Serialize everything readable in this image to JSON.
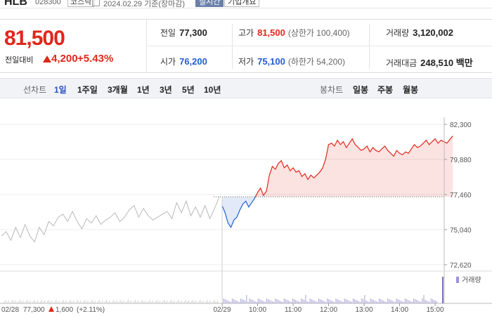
{
  "header": {
    "name": "HLB",
    "code": "028300",
    "market": "코스닥",
    "date": "2024.02.29  기준(장마감)",
    "realtime": "실시간",
    "corp_info": "기업개요"
  },
  "quote": {
    "price": "81,500",
    "change_label": "전일대비",
    "change": "4,200",
    "change_pct": "+5.43%",
    "prev_label": "전일",
    "prev": "77,300",
    "high_label": "고가",
    "high": "81,500",
    "upper_limit": "(상한가 100,400)",
    "volume_label": "거래량",
    "volume": "3,120,002",
    "open_label": "시가",
    "open": "76,200",
    "low_label": "저가",
    "low": "75,100",
    "lower_limit": "(하한가 54,200)",
    "amount_label": "거래대금",
    "amount": "248,510 백만"
  },
  "toolbar": {
    "line_label": "선차트",
    "periods": [
      "1일",
      "1주일",
      "3개월",
      "1년",
      "3년",
      "5년",
      "10년"
    ],
    "candle_label": "봉차트",
    "candles": [
      "일봉",
      "주봉",
      "월봉"
    ]
  },
  "colors": {
    "up": "#e0271b",
    "down": "#1f5fd1",
    "prev": "#b9b9b9",
    "toolbar_bg": "#f2f3f7"
  },
  "chart_data": {
    "type": "line",
    "y_ticks": [
      "82,300",
      "79,880",
      "77,460",
      "75,040",
      "72,620"
    ],
    "ylim": [
      72620,
      82300
    ],
    "baseline": 77300,
    "volume_label": "거래량",
    "x_ticks": [
      "02/29",
      "10:00",
      "11:00",
      "12:00",
      "13:00",
      "14:00",
      "15:00"
    ],
    "prev_day": {
      "label": "02/28",
      "close_label": "77,300",
      "change": "1,600",
      "change_pct": "(+2.11%)",
      "values": [
        74600,
        74900,
        74300,
        75200,
        74500,
        75400,
        74600,
        74200,
        75200,
        74700,
        75600,
        75300,
        75900,
        76100,
        75600,
        76300,
        75600,
        75100,
        75800,
        75500,
        76000,
        75400,
        75700,
        75900,
        76200,
        75600,
        75900,
        76400,
        76700,
        75900,
        76500,
        76000,
        75700,
        75900,
        76100,
        76300,
        75800,
        76900,
        76200,
        77000,
        76000,
        76600,
        75900,
        76700,
        75800,
        76500,
        77300
      ]
    },
    "today": {
      "times": [
        "09:00",
        "09:05",
        "09:10",
        "09:15",
        "09:20",
        "09:25",
        "09:30",
        "09:35",
        "09:40",
        "09:45",
        "09:50",
        "09:55",
        "10:00",
        "10:05",
        "10:10",
        "10:15",
        "10:20",
        "10:25",
        "10:30",
        "10:35",
        "10:40",
        "10:45",
        "10:50",
        "10:55",
        "11:00",
        "11:05",
        "11:10",
        "11:15",
        "11:20",
        "11:25",
        "11:30",
        "11:35",
        "11:40",
        "11:45",
        "11:50",
        "11:55",
        "12:00",
        "12:05",
        "12:10",
        "12:15",
        "12:20",
        "12:25",
        "12:30",
        "12:35",
        "12:40",
        "12:45",
        "12:50",
        "12:55",
        "13:00",
        "13:05",
        "13:10",
        "13:15",
        "13:20",
        "13:25",
        "13:30",
        "13:35",
        "13:40",
        "13:45",
        "13:50",
        "13:55",
        "14:00",
        "14:05",
        "14:10",
        "14:15",
        "14:20",
        "14:25",
        "14:30",
        "14:35",
        "14:40",
        "14:45",
        "14:50",
        "14:55",
        "15:00",
        "15:05",
        "15:10",
        "15:15",
        "15:20",
        "15:30"
      ],
      "values": [
        76700,
        76200,
        75500,
        75200,
        75700,
        75900,
        76400,
        76800,
        77000,
        76600,
        76900,
        77200,
        77600,
        77900,
        77400,
        77700,
        78800,
        79400,
        79200,
        79600,
        79800,
        79300,
        79500,
        79100,
        79300,
        79000,
        79100,
        78700,
        78900,
        78500,
        78800,
        78600,
        78800,
        79000,
        79300,
        79900,
        80900,
        81000,
        80800,
        81200,
        80900,
        81100,
        80700,
        81000,
        81300,
        80900,
        80700,
        80500,
        80600,
        80800,
        80400,
        80700,
        80500,
        80400,
        80600,
        80800,
        80500,
        80300,
        80100,
        80500,
        80300,
        80200,
        80400,
        80300,
        80600,
        80900,
        80700,
        80800,
        81000,
        81200,
        80900,
        81100,
        81300,
        81000,
        81200,
        81100,
        81000,
        81500
      ]
    }
  }
}
